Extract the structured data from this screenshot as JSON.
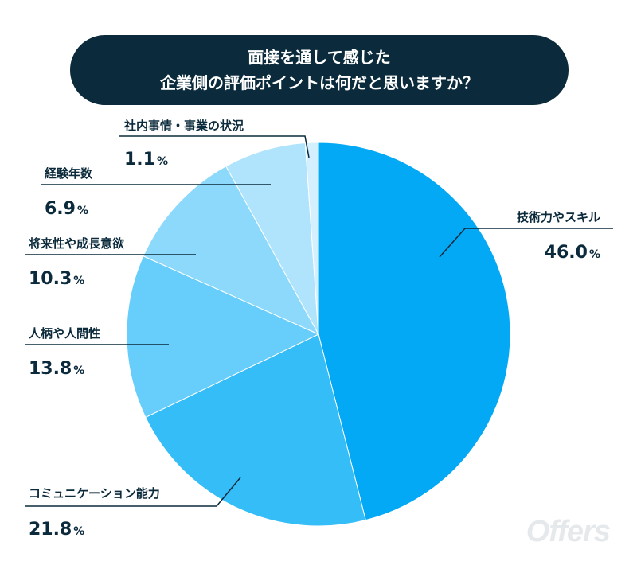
{
  "title": {
    "line1": "面接を通して感じた",
    "line2": "企業側の評価ポイントは何だと思いますか？"
  },
  "watermark": "Offers",
  "chart_data": {
    "type": "pie",
    "unit": "%",
    "slices": [
      {
        "label": "技術力やスキル",
        "value": 46.0,
        "display": "46.0",
        "color": "#03a9f4"
      },
      {
        "label": "コミュニケーション能力",
        "value": 21.8,
        "display": "21.8",
        "color": "#35bdf8"
      },
      {
        "label": "人柄や人間性",
        "value": 13.8,
        "display": "13.8",
        "color": "#67cdfa"
      },
      {
        "label": "将来性や成長意欲",
        "value": 10.3,
        "display": "10.3",
        "color": "#8cd9fb"
      },
      {
        "label": "経験年数",
        "value": 6.9,
        "display": "6.9",
        "color": "#b0e4fc"
      },
      {
        "label": "社内事情・事業の状況",
        "value": 1.1,
        "display": "1.1",
        "color": "#d4effd"
      }
    ]
  }
}
